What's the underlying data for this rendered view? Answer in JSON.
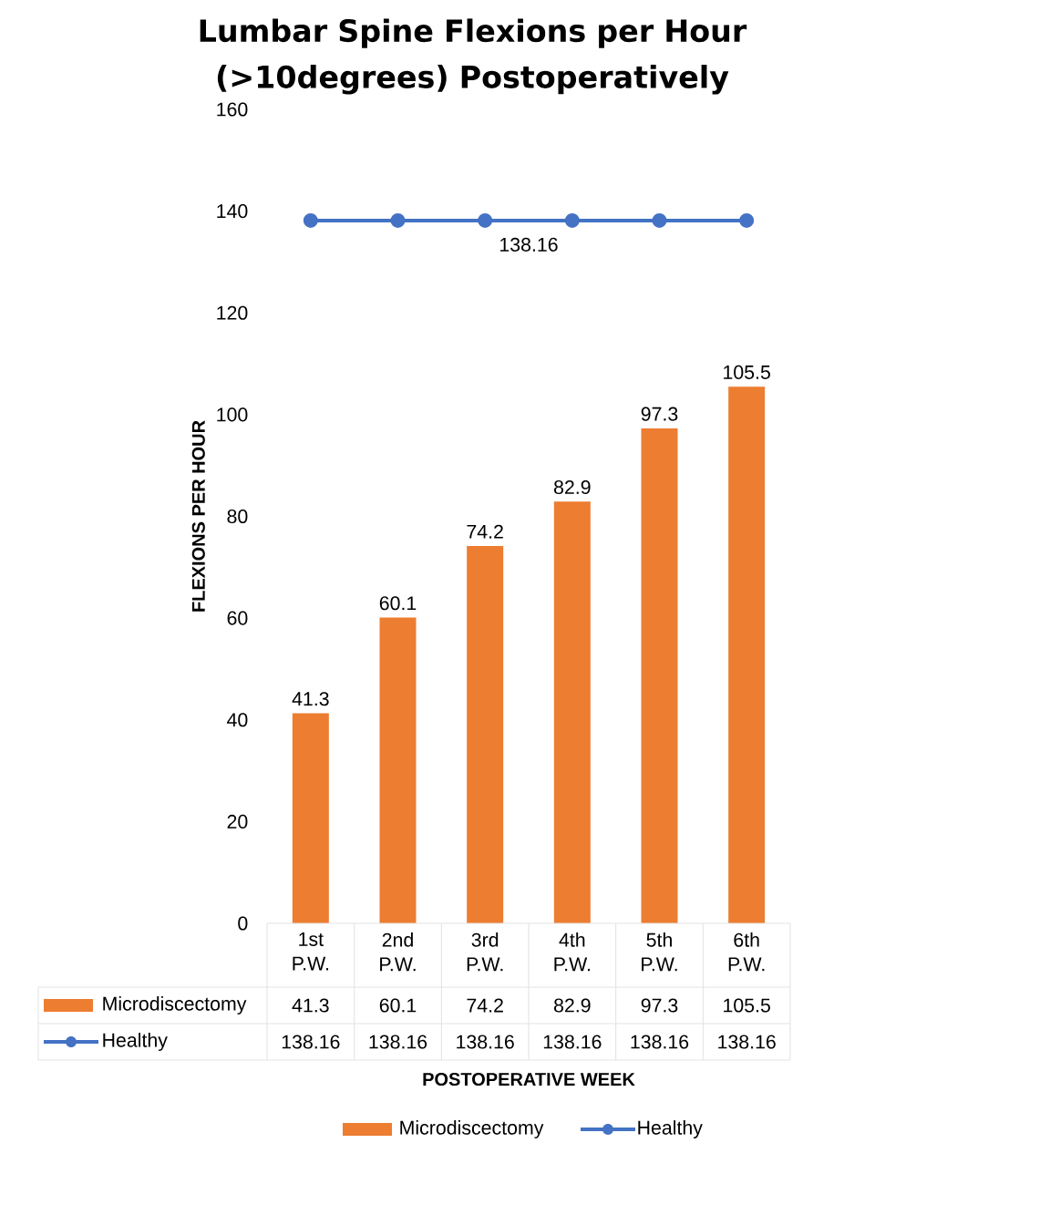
{
  "chart_data": {
    "type": "bar",
    "title": "Lumbar Spine Flexions per Hour (>10degrees) Postoperatively",
    "ylabel": "FLEXIONS PER HOUR",
    "categories": [
      "1st P.W.",
      "2nd P.W.",
      "3rd P.W.",
      "4th P.W.",
      "5th P.W.",
      "6th P.W."
    ],
    "series": [
      {
        "name": "Microdiscectomy",
        "color": "#ed7d31",
        "values": [
          41.3,
          60.1,
          74.2,
          82.9,
          97.3,
          105.5
        ]
      },
      {
        "name": "Healthy",
        "type": "line",
        "color": "#4472c4",
        "values": [
          138.16,
          138.16,
          138.16,
          138.16,
          138.16,
          138.16
        ]
      }
    ],
    "annotations": [
      {
        "text": "41.3",
        "x": "1st P.W.",
        "y": 41.3
      },
      {
        "text": "60.1",
        "x": "2nd P.W.",
        "y": 60.1
      },
      {
        "text": "74.2",
        "x": "3rd P.W.",
        "y": 74.2
      },
      {
        "text": "82.9",
        "x": "4th P.W.",
        "y": 82.9
      },
      {
        "text": "97.3",
        "x": "5th P.W.",
        "y": 97.3
      },
      {
        "text": "105.5",
        "x": "6th P.W.",
        "y": 105.5
      },
      {
        "text": "138.16",
        "y": 138.16
      },
      "POSTOPERATIVE WEEK"
    ],
    "ylim": [
      0,
      160
    ],
    "yticks": [
      0,
      20,
      40,
      60,
      80,
      100,
      120,
      140,
      160
    ],
    "data_labels": true,
    "legend": "bottom",
    "marker": "circle"
  }
}
